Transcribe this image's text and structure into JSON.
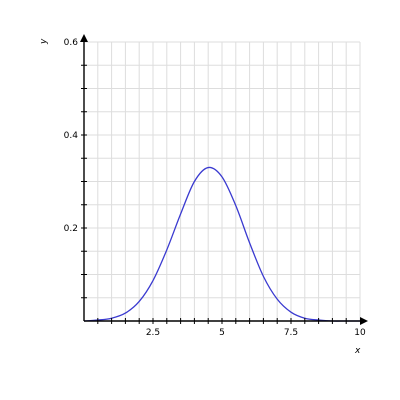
{
  "chart_data": {
    "type": "line",
    "xlabel": "x",
    "ylabel": "y",
    "xlim": [
      0,
      10
    ],
    "ylim": [
      0,
      0.6
    ],
    "x_ticks": [
      2.5,
      5,
      7.5,
      10
    ],
    "x_tick_labels": [
      "2.5",
      "5",
      "7.5",
      "10"
    ],
    "y_ticks": [
      0.2,
      0.4,
      0.6
    ],
    "y_tick_labels": [
      "0.2",
      "0.4",
      "0.6"
    ],
    "grid": true,
    "x_grid_step": 0.5,
    "y_grid_step": 0.05,
    "series": [
      {
        "color": "#3a3ad0",
        "x": [
          0,
          0.5,
          1,
          1.5,
          2,
          2.5,
          3,
          3.5,
          4,
          4.5,
          5,
          5.5,
          6,
          6.5,
          7,
          7.5,
          8,
          8.5,
          9,
          9.5,
          10
        ],
        "y": [
          0.0,
          0.002,
          0.006,
          0.017,
          0.042,
          0.087,
          0.153,
          0.23,
          0.3,
          0.33,
          0.31,
          0.248,
          0.168,
          0.096,
          0.047,
          0.019,
          0.006,
          0.002,
          0.0,
          0.0,
          0.0
        ]
      }
    ]
  }
}
